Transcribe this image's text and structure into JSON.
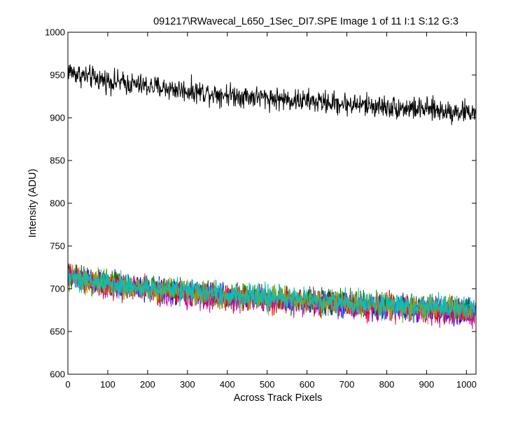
{
  "chart_data": {
    "type": "line",
    "title": "091217\\RWavecal_L650_1Sec_DI7.SPE  Image 1 of 11  I:1  S:12  G:3",
    "xlabel": "Across Track Pixels",
    "ylabel": "Intensity (ADU)",
    "xlim": [
      0,
      1024
    ],
    "ylim": [
      600,
      1000
    ],
    "x_ticks": [
      "0",
      "100",
      "200",
      "300",
      "400",
      "500",
      "600",
      "700",
      "800",
      "900",
      "1000"
    ],
    "y_ticks": [
      "600",
      "650",
      "700",
      "750",
      "800",
      "850",
      "900",
      "950",
      "1000"
    ],
    "grid": false,
    "legend": "none",
    "x_count": 1024,
    "series": [
      {
        "color": "#000000",
        "start": 958,
        "end": 906,
        "noise": 11,
        "values": []
      },
      {
        "color": "#0000ff",
        "start": 718,
        "end": 672,
        "noise": 12,
        "values": []
      },
      {
        "color": "#008000",
        "start": 719,
        "end": 675,
        "noise": 12,
        "values": []
      },
      {
        "color": "#ff0000",
        "start": 717,
        "end": 673,
        "noise": 12,
        "values": []
      },
      {
        "color": "#c000c0",
        "start": 716,
        "end": 671,
        "noise": 12,
        "values": []
      },
      {
        "color": "#a0a000",
        "start": 717,
        "end": 674,
        "noise": 12,
        "values": []
      },
      {
        "color": "#00c0c0",
        "start": 718,
        "end": 676,
        "noise": 12,
        "values": []
      }
    ]
  }
}
